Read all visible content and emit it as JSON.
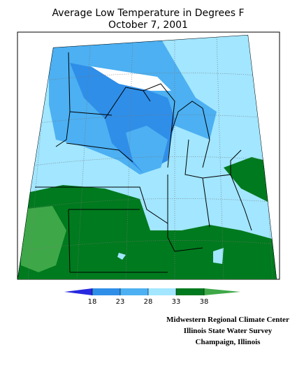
{
  "title": "Average Low Temperature in Degrees F",
  "date": "October 7, 2001",
  "legend": {
    "ticks": [
      18,
      23,
      28,
      33,
      38
    ],
    "colors": [
      "#2828e0",
      "#2f8ee8",
      "#4cb0f2",
      "#a2e6ff",
      "#007a1e",
      "#3ea848"
    ]
  },
  "credits": [
    "Midwestern Regional Climate Center",
    "Illinois State Water Survey",
    "Champaign, Illinois"
  ]
}
